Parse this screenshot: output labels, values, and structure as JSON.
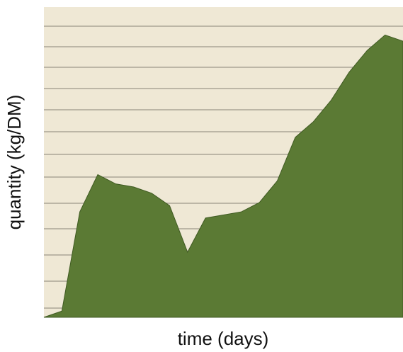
{
  "chart_data": {
    "type": "area",
    "x_label": "time (days)",
    "y_label": "quantity (kg/DM)",
    "x": [
      0,
      1,
      2,
      3,
      4,
      5,
      6,
      7,
      8,
      9,
      10,
      11,
      12,
      13,
      14,
      15,
      16,
      17,
      18,
      19,
      20
    ],
    "values": [
      0,
      2,
      34,
      46,
      43,
      42,
      40,
      36,
      21,
      32,
      33,
      34,
      37,
      44,
      58,
      63,
      70,
      79,
      86,
      91,
      89
    ],
    "color": "#5b7a34",
    "xlim": [
      0,
      20
    ],
    "ylim": [
      0,
      100
    ]
  }
}
